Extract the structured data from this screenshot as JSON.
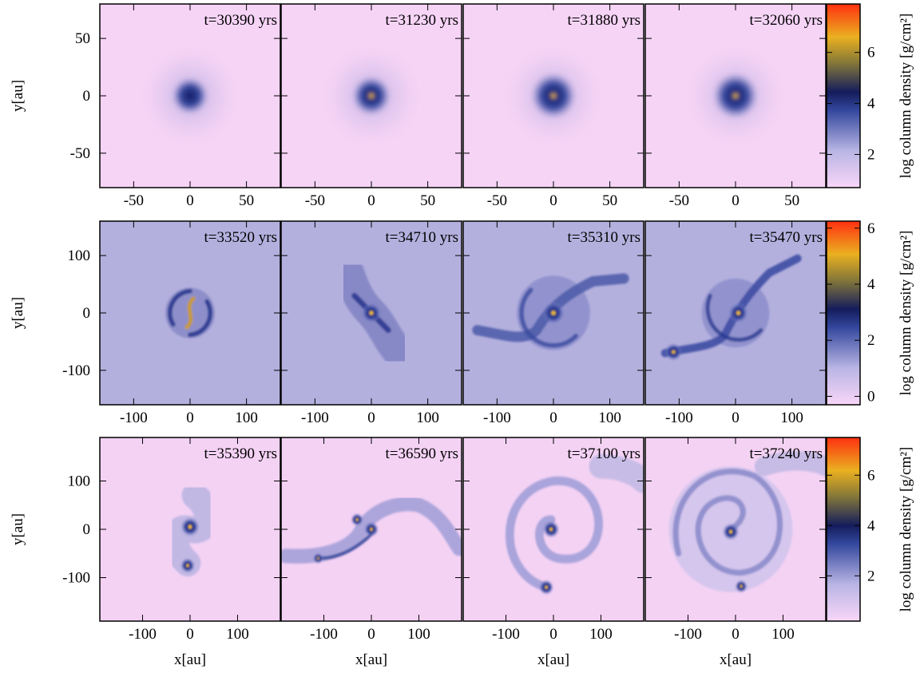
{
  "chart_data": [
    {
      "type": "density-map",
      "annotation": "t=30390 yrs",
      "xlim": [
        -80,
        80
      ],
      "ylim": [
        -80,
        80
      ],
      "xticks": [
        -50,
        0,
        50
      ],
      "yticks": [
        -50,
        0,
        50
      ],
      "y_label": "y[au]"
    },
    {
      "type": "density-map",
      "annotation": "t=31230 yrs",
      "xlim": [
        -80,
        80
      ],
      "ylim": [
        -80,
        80
      ],
      "xticks": [
        -50,
        0,
        50
      ],
      "yticks": [
        -50,
        0,
        50
      ]
    },
    {
      "type": "density-map",
      "annotation": "t=31880 yrs",
      "xlim": [
        -80,
        80
      ],
      "ylim": [
        -80,
        80
      ],
      "xticks": [
        -50,
        0,
        50
      ],
      "yticks": [
        -50,
        0,
        50
      ]
    },
    {
      "type": "density-map",
      "annotation": "t=32060 yrs",
      "xlim": [
        -80,
        80
      ],
      "ylim": [
        -80,
        80
      ],
      "xticks": [
        -50,
        0,
        50
      ],
      "yticks": [
        -50,
        0,
        50
      ]
    },
    {
      "type": "density-map",
      "annotation": "t=33520 yrs",
      "xlim": [
        -160,
        160
      ],
      "ylim": [
        -160,
        160
      ],
      "xticks": [
        -100,
        0,
        100
      ],
      "yticks": [
        -100,
        0,
        100
      ],
      "y_label": "y[au]"
    },
    {
      "type": "density-map",
      "annotation": "t=34710 yrs",
      "xlim": [
        -160,
        160
      ],
      "ylim": [
        -160,
        160
      ],
      "xticks": [
        -100,
        0,
        100
      ],
      "yticks": [
        -100,
        0,
        100
      ]
    },
    {
      "type": "density-map",
      "annotation": "t=35310 yrs",
      "xlim": [
        -160,
        160
      ],
      "ylim": [
        -160,
        160
      ],
      "xticks": [
        -100,
        0,
        100
      ],
      "yticks": [
        -100,
        0,
        100
      ]
    },
    {
      "type": "density-map",
      "annotation": "t=35470 yrs",
      "xlim": [
        -160,
        160
      ],
      "ylim": [
        -160,
        160
      ],
      "xticks": [
        -100,
        0,
        100
      ],
      "yticks": [
        -100,
        0,
        100
      ]
    },
    {
      "type": "density-map",
      "annotation": "t=35390 yrs",
      "xlim": [
        -190,
        190
      ],
      "ylim": [
        -190,
        190
      ],
      "xticks": [
        -100,
        0,
        100
      ],
      "yticks": [
        -100,
        0,
        100
      ],
      "y_label": "y[au]",
      "x_label": "x[au]"
    },
    {
      "type": "density-map",
      "annotation": "t=36590 yrs",
      "xlim": [
        -190,
        190
      ],
      "ylim": [
        -190,
        190
      ],
      "xticks": [
        -100,
        0,
        100
      ],
      "yticks": [
        -100,
        0,
        100
      ],
      "x_label": "x[au]"
    },
    {
      "type": "density-map",
      "annotation": "t=37100 yrs",
      "xlim": [
        -190,
        190
      ],
      "ylim": [
        -190,
        190
      ],
      "xticks": [
        -100,
        0,
        100
      ],
      "yticks": [
        -100,
        0,
        100
      ],
      "x_label": "x[au]"
    },
    {
      "type": "density-map",
      "annotation": "t=37240 yrs",
      "xlim": [
        -190,
        190
      ],
      "ylim": [
        -190,
        190
      ],
      "xticks": [
        -100,
        0,
        100
      ],
      "yticks": [
        -100,
        0,
        100
      ],
      "x_label": "x[au]"
    },
    {
      "type": "colorbar",
      "label": "log column density [g/cm²]",
      "ylim": [
        0.7,
        7.9
      ],
      "yticks": [
        2,
        4,
        6
      ]
    },
    {
      "type": "colorbar",
      "label": "log column density [g/cm²]",
      "ylim": [
        -0.3,
        6.25
      ],
      "yticks": [
        0,
        2,
        4,
        6
      ]
    },
    {
      "type": "colorbar",
      "label": "log column density [g/cm²]",
      "ylim": [
        0.2,
        7.5
      ],
      "yticks": [
        2,
        4,
        6
      ]
    }
  ]
}
